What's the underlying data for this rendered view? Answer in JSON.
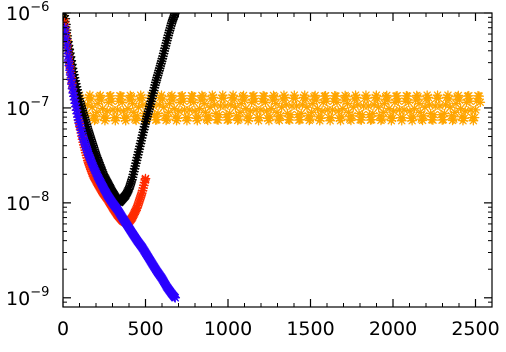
{
  "chart_data": {
    "type": "scatter",
    "title": "",
    "xlabel": "",
    "ylabel": "",
    "xlim": [
      0,
      2600
    ],
    "ylim": [
      8e-10,
      1e-06
    ],
    "y_scale": "log",
    "grid": false,
    "marker": "asterisk",
    "x_ticks": [
      {
        "value": 0,
        "label": "0"
      },
      {
        "value": 500,
        "label": "500"
      },
      {
        "value": 1000,
        "label": "1000"
      },
      {
        "value": 1500,
        "label": "1500"
      },
      {
        "value": 2000,
        "label": "2000"
      },
      {
        "value": 2500,
        "label": "2500"
      }
    ],
    "y_ticks": [
      {
        "value": 1e-06,
        "base": "10",
        "exp": "−6"
      },
      {
        "value": 1e-07,
        "base": "10",
        "exp": "−7"
      },
      {
        "value": 1e-08,
        "base": "10",
        "exp": "−8"
      },
      {
        "value": 1e-09,
        "base": "10",
        "exp": "−9"
      }
    ],
    "series": [
      {
        "color": "#000000",
        "x": [
          10,
          30,
          60,
          100,
          150,
          200,
          250,
          300,
          340,
          380,
          400,
          420,
          450,
          480,
          500,
          530,
          560,
          600,
          640,
          660,
          680
        ],
        "y": [
          1e-06,
          5e-07,
          2.5e-07,
          1.2e-07,
          6e-08,
          3.2e-08,
          1.9e-08,
          1.3e-08,
          1e-08,
          1.2e-08,
          1.4e-08,
          1.8e-08,
          3e-08,
          5e-08,
          7e-08,
          1.1e-07,
          1.8e-07,
          3.2e-07,
          6e-07,
          8e-07,
          1e-06
        ]
      },
      {
        "color": "#ff2a00",
        "x": [
          10,
          30,
          60,
          90,
          120,
          150,
          180,
          210,
          240,
          270,
          300,
          330,
          360,
          390,
          420,
          450,
          480,
          500
        ],
        "y": [
          8e-07,
          4e-07,
          1.5e-07,
          8e-08,
          4.5e-08,
          2.8e-08,
          2e-08,
          1.6e-08,
          1.3e-08,
          1.1e-08,
          9e-09,
          7.5e-09,
          6.5e-09,
          6e-09,
          7e-09,
          9e-09,
          1.3e-08,
          1.8e-08
        ]
      },
      {
        "color": "#2a00ff",
        "x": [
          10,
          30,
          60,
          90,
          120,
          150,
          180,
          210,
          240,
          270,
          300,
          330,
          360,
          390,
          420,
          450,
          480,
          510,
          540,
          570,
          600,
          630,
          660,
          680
        ],
        "y": [
          7e-07,
          3.5e-07,
          1.5e-07,
          8e-08,
          5e-08,
          3.4e-08,
          2.5e-08,
          1.9e-08,
          1.5e-08,
          1.2e-08,
          1e-08,
          8.5e-09,
          7e-09,
          5.8e-09,
          4.8e-09,
          4e-09,
          3.4e-09,
          2.8e-09,
          2.3e-09,
          1.9e-09,
          1.6e-09,
          1.3e-09,
          1.1e-09,
          1e-09
        ]
      },
      {
        "color": "#ffa500",
        "oscillation": {
          "x_start": 100,
          "x_end": 2530,
          "center": 1e-07,
          "high": 1.3e-07,
          "low": 7e-08,
          "period": 62
        },
        "x": [
          5,
          20,
          40,
          60,
          80
        ],
        "y": [
          1e-06,
          6e-07,
          3.2e-07,
          1.8e-07,
          1.25e-07
        ]
      }
    ]
  }
}
